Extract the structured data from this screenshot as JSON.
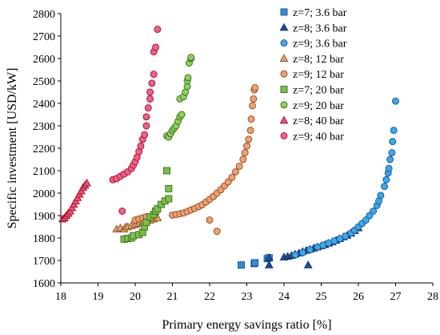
{
  "chart_data": {
    "type": "scatter",
    "xlabel": "Primary energy savings ratio [%]",
    "ylabel": "Specific investment [USD/kW]",
    "xlim": [
      18,
      28
    ],
    "ylim": [
      1600,
      2800
    ],
    "x_ticks": [
      "18",
      "19",
      "20",
      "21",
      "22",
      "23",
      "24",
      "25",
      "26",
      "27",
      "28"
    ],
    "y_ticks": [
      "1600",
      "1700",
      "1800",
      "1900",
      "2000",
      "2100",
      "2200",
      "2300",
      "2400",
      "2500",
      "2600",
      "2700",
      "2800"
    ],
    "grid": false,
    "legend_position": "right",
    "series": [
      {
        "name": "z=7; 3.6 bar",
        "marker": "square",
        "fill": "#2e8fd8",
        "stroke": "#1b4f8a",
        "points": [
          [
            22.85,
            1680
          ],
          [
            23.2,
            1686
          ],
          [
            23.22,
            1690
          ],
          [
            23.55,
            1708
          ],
          [
            23.6,
            1712
          ]
        ]
      },
      {
        "name": "z=8; 3.6 bar",
        "marker": "triangle",
        "fill": "#1d4fa0",
        "stroke": "#0f2c63",
        "points": [
          [
            23.6,
            1712
          ],
          [
            23.6,
            1680
          ],
          [
            24.0,
            1715
          ],
          [
            24.1,
            1718
          ],
          [
            24.2,
            1722
          ],
          [
            24.3,
            1728
          ],
          [
            24.4,
            1733
          ],
          [
            24.5,
            1740
          ],
          [
            24.6,
            1745
          ],
          [
            24.65,
            1680
          ],
          [
            24.7,
            1750
          ],
          [
            24.8,
            1755
          ],
          [
            24.9,
            1760
          ],
          [
            25.0,
            1765
          ],
          [
            25.1,
            1770
          ],
          [
            25.2,
            1777
          ],
          [
            25.3,
            1783
          ],
          [
            25.4,
            1790
          ],
          [
            25.5,
            1797
          ],
          [
            25.6,
            1805
          ],
          [
            25.7,
            1812
          ],
          [
            25.8,
            1822
          ],
          [
            25.9,
            1833
          ],
          [
            26.0,
            1845
          ]
        ]
      },
      {
        "name": "z=9; 3.6 bar",
        "marker": "circle",
        "fill": "#3aa8ee",
        "stroke": "#1b4f8a",
        "points": [
          [
            24.3,
            1725
          ],
          [
            24.5,
            1735
          ],
          [
            24.7,
            1748
          ],
          [
            24.9,
            1760
          ],
          [
            25.05,
            1768
          ],
          [
            25.2,
            1778
          ],
          [
            25.35,
            1787
          ],
          [
            25.5,
            1797
          ],
          [
            25.65,
            1808
          ],
          [
            25.8,
            1822
          ],
          [
            25.9,
            1835
          ],
          [
            26.0,
            1850
          ],
          [
            26.1,
            1865
          ],
          [
            26.2,
            1880
          ],
          [
            26.3,
            1900
          ],
          [
            26.4,
            1920
          ],
          [
            26.5,
            1945
          ],
          [
            26.55,
            1965
          ],
          [
            26.6,
            1990
          ],
          [
            26.7,
            2030
          ],
          [
            26.75,
            2060
          ],
          [
            26.8,
            2090
          ],
          [
            26.82,
            2110
          ],
          [
            26.85,
            2150
          ],
          [
            26.9,
            2180
          ],
          [
            26.92,
            2230
          ],
          [
            26.95,
            2280
          ],
          [
            27.0,
            2410
          ]
        ]
      },
      {
        "name": "z=8; 12 bar",
        "marker": "triangle",
        "fill": "#e8a070",
        "stroke": "#8a4a20",
        "points": [
          [
            19.5,
            1840
          ],
          [
            19.6,
            1845
          ],
          [
            19.7,
            1840
          ],
          [
            19.75,
            1850
          ],
          [
            19.8,
            1850
          ],
          [
            19.9,
            1855
          ],
          [
            20.0,
            1860
          ],
          [
            20.1,
            1865
          ],
          [
            20.2,
            1870
          ],
          [
            20.3,
            1875
          ],
          [
            20.4,
            1880
          ],
          [
            20.5,
            1885
          ],
          [
            20.6,
            1890
          ]
        ]
      },
      {
        "name": "z=9; 12 bar",
        "marker": "circle",
        "fill": "#f0a070",
        "stroke": "#8a4a20",
        "points": [
          [
            20.0,
            1880
          ],
          [
            20.1,
            1885
          ],
          [
            20.2,
            1890
          ],
          [
            20.3,
            1895
          ],
          [
            20.5,
            1898
          ],
          [
            21.0,
            1902
          ],
          [
            21.1,
            1905
          ],
          [
            21.2,
            1908
          ],
          [
            21.3,
            1912
          ],
          [
            21.4,
            1918
          ],
          [
            21.5,
            1925
          ],
          [
            21.6,
            1932
          ],
          [
            21.7,
            1940
          ],
          [
            21.8,
            1948
          ],
          [
            21.9,
            1960
          ],
          [
            22.0,
            1972
          ],
          [
            22.1,
            1985
          ],
          [
            22.2,
            2000
          ],
          [
            22.3,
            2015
          ],
          [
            22.4,
            2032
          ],
          [
            22.5,
            2050
          ],
          [
            22.6,
            2070
          ],
          [
            22.7,
            2095
          ],
          [
            22.8,
            2120
          ],
          [
            22.9,
            2150
          ],
          [
            22.95,
            2180
          ],
          [
            23.0,
            2210
          ],
          [
            23.05,
            2240
          ],
          [
            23.1,
            2280
          ],
          [
            23.12,
            2330
          ],
          [
            23.15,
            2390
          ],
          [
            23.18,
            2420
          ],
          [
            23.2,
            2460
          ],
          [
            23.22,
            2470
          ],
          [
            22.0,
            1880
          ],
          [
            22.2,
            1830
          ]
        ]
      },
      {
        "name": "z=7; 20 bar",
        "marker": "square",
        "fill": "#7cc04a",
        "stroke": "#3a6a1a",
        "points": [
          [
            19.7,
            1795
          ],
          [
            19.8,
            1798
          ],
          [
            19.9,
            1800
          ],
          [
            19.95,
            1810
          ],
          [
            20.1,
            1815
          ],
          [
            20.2,
            1825
          ],
          [
            20.25,
            1850
          ],
          [
            20.3,
            1870
          ],
          [
            20.4,
            1895
          ],
          [
            20.5,
            1905
          ],
          [
            20.55,
            1920
          ],
          [
            20.6,
            1930
          ],
          [
            20.7,
            1950
          ],
          [
            20.8,
            1965
          ],
          [
            20.9,
            1975
          ],
          [
            20.9,
            2020
          ],
          [
            20.85,
            2100
          ]
        ]
      },
      {
        "name": "z=9; 20 bar",
        "marker": "circle",
        "fill": "#8ed05a",
        "stroke": "#3a6a1a",
        "points": [
          [
            20.85,
            2255
          ],
          [
            20.9,
            2250
          ],
          [
            20.95,
            2265
          ],
          [
            21.0,
            2280
          ],
          [
            21.05,
            2290
          ],
          [
            21.1,
            2300
          ],
          [
            21.15,
            2320
          ],
          [
            21.2,
            2340
          ],
          [
            21.25,
            2350
          ],
          [
            21.2,
            2420
          ],
          [
            21.3,
            2430
          ],
          [
            21.35,
            2450
          ],
          [
            21.4,
            2475
          ],
          [
            21.4,
            2500
          ],
          [
            21.42,
            2515
          ],
          [
            21.45,
            2580
          ],
          [
            21.5,
            2600
          ],
          [
            21.5,
            2605
          ]
        ]
      },
      {
        "name": "z=8; 40 bar",
        "marker": "triangle",
        "fill": "#f05070",
        "stroke": "#a0102a",
        "points": [
          [
            18.05,
            1885
          ],
          [
            18.1,
            1890
          ],
          [
            18.15,
            1900
          ],
          [
            18.2,
            1910
          ],
          [
            18.25,
            1920
          ],
          [
            18.3,
            1935
          ],
          [
            18.35,
            1950
          ],
          [
            18.4,
            1965
          ],
          [
            18.45,
            1980
          ],
          [
            18.5,
            1995
          ],
          [
            18.55,
            2010
          ],
          [
            18.6,
            2025
          ],
          [
            18.65,
            2035
          ],
          [
            18.7,
            2045
          ]
        ]
      },
      {
        "name": "z=9; 40 bar",
        "marker": "circle",
        "fill": "#f06088",
        "stroke": "#a0102a",
        "points": [
          [
            19.4,
            2060
          ],
          [
            19.5,
            2065
          ],
          [
            19.6,
            2075
          ],
          [
            19.7,
            2085
          ],
          [
            19.8,
            2095
          ],
          [
            19.9,
            2110
          ],
          [
            19.95,
            2125
          ],
          [
            20.0,
            2140
          ],
          [
            20.05,
            2160
          ],
          [
            20.1,
            2185
          ],
          [
            20.15,
            2210
          ],
          [
            20.2,
            2240
          ],
          [
            20.25,
            2260
          ],
          [
            20.3,
            2300
          ],
          [
            20.3,
            2340
          ],
          [
            20.35,
            2380
          ],
          [
            20.4,
            2420
          ],
          [
            20.4,
            2450
          ],
          [
            20.45,
            2490
          ],
          [
            20.5,
            2530
          ],
          [
            20.5,
            2630
          ],
          [
            20.55,
            2650
          ],
          [
            20.6,
            2730
          ],
          [
            19.65,
            1920
          ]
        ]
      }
    ]
  }
}
